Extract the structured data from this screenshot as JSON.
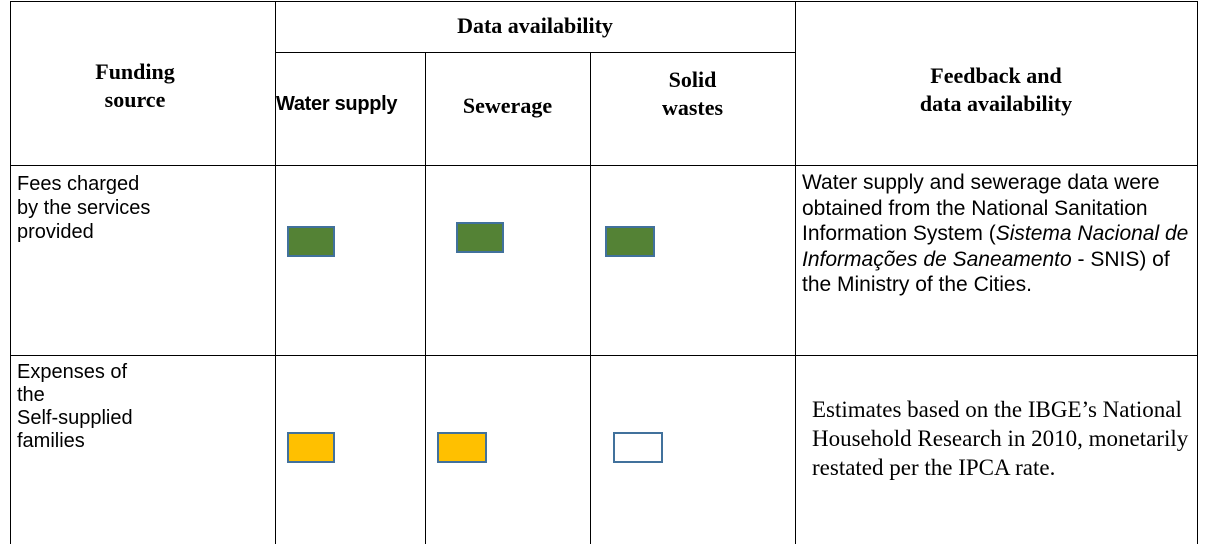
{
  "header": {
    "funding_source": "Funding source",
    "data_availability": "Data availability",
    "columns": [
      "Water supply",
      "Sewerage",
      [
        "Solid",
        "wastes"
      ]
    ],
    "feedback": [
      "Feedback and",
      "data availability"
    ]
  },
  "table": {
    "rows": [
      {
        "source": [
          "Fees charged",
          "by the services",
          "provided"
        ],
        "availability": [
          "#548235",
          "#548235",
          "#548235"
        ],
        "feedback": [
          "Water supply and sewerage data were obtained from the National Sanitation Information System (",
          "Sistema Nacional de Informações de Saneamento",
          " - SNIS) of the Ministry of the Cities."
        ]
      },
      {
        "source": [
          "Expenses of",
          "the",
          "Self-supplied",
          "families"
        ],
        "availability": [
          "#ffc000",
          "#ffc000",
          "#ffffff"
        ],
        "feedback": [
          "Estimates based on the IBGE’s National Household Research in 2010, monetarily restated per the IPCA rate."
        ]
      }
    ]
  }
}
